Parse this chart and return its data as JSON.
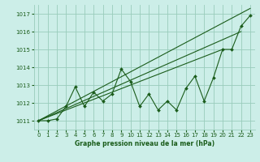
{
  "xlabel": "Graphe pression niveau de la mer (hPa)",
  "ylim": [
    1010.5,
    1017.5
  ],
  "xlim": [
    -0.5,
    23.5
  ],
  "yticks": [
    1011,
    1012,
    1013,
    1014,
    1015,
    1016,
    1017
  ],
  "xticks": [
    0,
    1,
    2,
    3,
    4,
    5,
    6,
    7,
    8,
    9,
    10,
    11,
    12,
    13,
    14,
    15,
    16,
    17,
    18,
    19,
    20,
    21,
    22,
    23
  ],
  "bg_color": "#cceee8",
  "grid_color": "#99ccbb",
  "line_color": "#1a5c1a",
  "data_x": [
    0,
    1,
    2,
    3,
    4,
    5,
    6,
    7,
    8,
    9,
    10,
    11,
    12,
    13,
    14,
    15,
    16,
    17,
    18,
    19,
    20,
    21,
    22,
    23
  ],
  "data_y": [
    1011.0,
    1011.0,
    1011.1,
    1011.8,
    1012.9,
    1011.8,
    1012.6,
    1012.1,
    1012.5,
    1013.9,
    1013.2,
    1011.8,
    1012.5,
    1011.6,
    1012.1,
    1011.6,
    1012.8,
    1013.5,
    1012.1,
    1013.4,
    1015.0,
    1015.0,
    1016.3,
    1016.9
  ],
  "trend1_x": [
    0,
    20
  ],
  "trend1_y": [
    1011.0,
    1015.0
  ],
  "trend2_x": [
    0,
    22
  ],
  "trend2_y": [
    1011.0,
    1016.0
  ],
  "trend3_x": [
    0,
    23
  ],
  "trend3_y": [
    1011.0,
    1017.3
  ],
  "label_fontsize": 5.5,
  "tick_fontsize": 5.0
}
